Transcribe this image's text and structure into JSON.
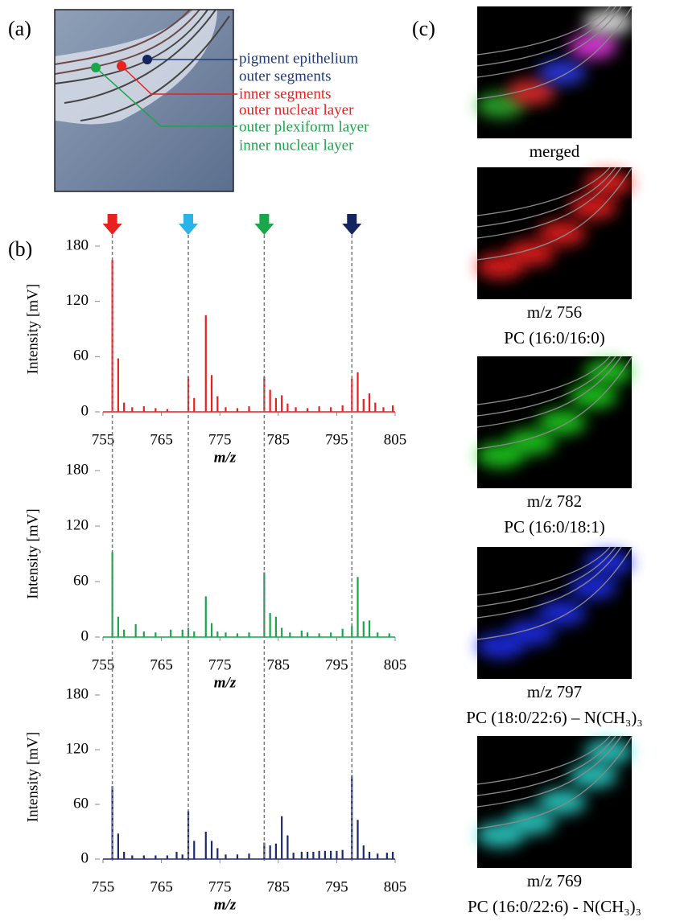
{
  "panel_letters": [
    "(a)",
    "(b)",
    "(c)"
  ],
  "panel_a": {
    "labels": [
      {
        "text": "pigment epithelium",
        "color": "#1f3a7a"
      },
      {
        "text": "outer segments",
        "color": "#1f3a7a"
      },
      {
        "text": "inner segments",
        "color": "#e8201e"
      },
      {
        "text": "outer nuclear layer",
        "color": "#e8201e"
      },
      {
        "text": "outer plexiform layer",
        "color": "#1aa64a"
      },
      {
        "text": "inner nuclear layer",
        "color": "#1aa64a"
      }
    ]
  },
  "markers": [
    {
      "x": 756.6,
      "color": "#e8201e"
    },
    {
      "x": 769.6,
      "color": "#29b3e8"
    },
    {
      "x": 782.6,
      "color": "#1aa64a"
    },
    {
      "x": 797.6,
      "color": "#13245e"
    }
  ],
  "chart_data": [
    {
      "type": "spectrum",
      "ylabel": "Intensity [mV]",
      "xlabel": "m/z",
      "color": "#e8201e",
      "xlim": [
        755,
        805
      ],
      "xticks": [
        755,
        765,
        775,
        785,
        795,
        805
      ],
      "ylim": [
        0,
        180
      ],
      "yticks": [
        0,
        60,
        120,
        180
      ],
      "x": [
        756.6,
        757.6,
        758.6,
        760,
        762,
        764,
        766,
        769.6,
        770.6,
        772.6,
        773.6,
        774.6,
        776,
        778,
        780,
        782.6,
        783.6,
        784.6,
        785.6,
        786.6,
        788,
        790,
        792,
        794,
        796,
        797.6,
        798.6,
        799.6,
        800.6,
        801.6,
        803,
        804.6
      ],
      "values": [
        165,
        58,
        10,
        5,
        6,
        4,
        3,
        38,
        15,
        105,
        40,
        17,
        5,
        4,
        6,
        38,
        24,
        15,
        18,
        9,
        5,
        4,
        6,
        5,
        7,
        36,
        43,
        14,
        20,
        10,
        5,
        7
      ]
    },
    {
      "type": "spectrum",
      "ylabel": "Intensity [mV]",
      "xlabel": "m/z",
      "color": "#1aa64a",
      "xlim": [
        755,
        805
      ],
      "xticks": [
        755,
        765,
        775,
        785,
        795,
        805
      ],
      "ylim": [
        0,
        180
      ],
      "yticks": [
        0,
        60,
        120,
        180
      ],
      "x": [
        756.6,
        757.6,
        758.6,
        760.6,
        762,
        764,
        766.6,
        768.6,
        769.6,
        770.6,
        772.6,
        773.6,
        774.6,
        776,
        778,
        780,
        782.6,
        783.6,
        784.6,
        785.6,
        787,
        789,
        790,
        792,
        794,
        796,
        797.6,
        798.6,
        799.6,
        800.6,
        802,
        804
      ],
      "values": [
        92,
        22,
        8,
        14,
        6,
        5,
        8,
        8,
        10,
        6,
        44,
        15,
        6,
        5,
        4,
        5,
        70,
        26,
        22,
        10,
        5,
        7,
        5,
        4,
        5,
        9,
        12,
        65,
        17,
        18,
        5,
        4
      ]
    },
    {
      "type": "spectrum",
      "ylabel": "Intensity [mV]",
      "xlabel": "m/z",
      "color": "#1c2a6b",
      "xlim": [
        755,
        805
      ],
      "xticks": [
        755,
        765,
        775,
        785,
        795,
        805
      ],
      "ylim": [
        0,
        180
      ],
      "yticks": [
        0,
        60,
        120,
        180
      ],
      "x": [
        756.6,
        757.6,
        758.6,
        760,
        762,
        764,
        766,
        767.6,
        768.6,
        769.6,
        770.6,
        772.6,
        773.6,
        774.6,
        776,
        778,
        780,
        782.6,
        783.6,
        784.6,
        785.6,
        786.6,
        787.6,
        789,
        790,
        791,
        792,
        793,
        794,
        795,
        796,
        797.6,
        798.6,
        799.6,
        800.6,
        802,
        803.6,
        804.6
      ],
      "values": [
        80,
        28,
        8,
        4,
        4,
        4,
        4,
        8,
        5,
        53,
        20,
        30,
        20,
        12,
        5,
        5,
        6,
        18,
        15,
        17,
        47,
        26,
        7,
        8,
        8,
        8,
        9,
        9,
        9,
        9,
        10,
        92,
        43,
        15,
        8,
        6,
        7,
        8
      ]
    }
  ],
  "panel_c": {
    "images": [
      {
        "lines": [
          "merged"
        ]
      },
      {
        "lines": [
          "m/z 756",
          "PC (16:0/16:0)"
        ]
      },
      {
        "lines": [
          "m/z 782",
          "PC (16:0/18:1)"
        ]
      },
      {
        "lines": [
          "m/z 797",
          "PC (18:0/22:6) – N(CH₃)₃"
        ]
      },
      {
        "lines": [
          "m/z 769",
          "PC (16:0/22:6) - N(CH₃)₃"
        ]
      }
    ]
  }
}
